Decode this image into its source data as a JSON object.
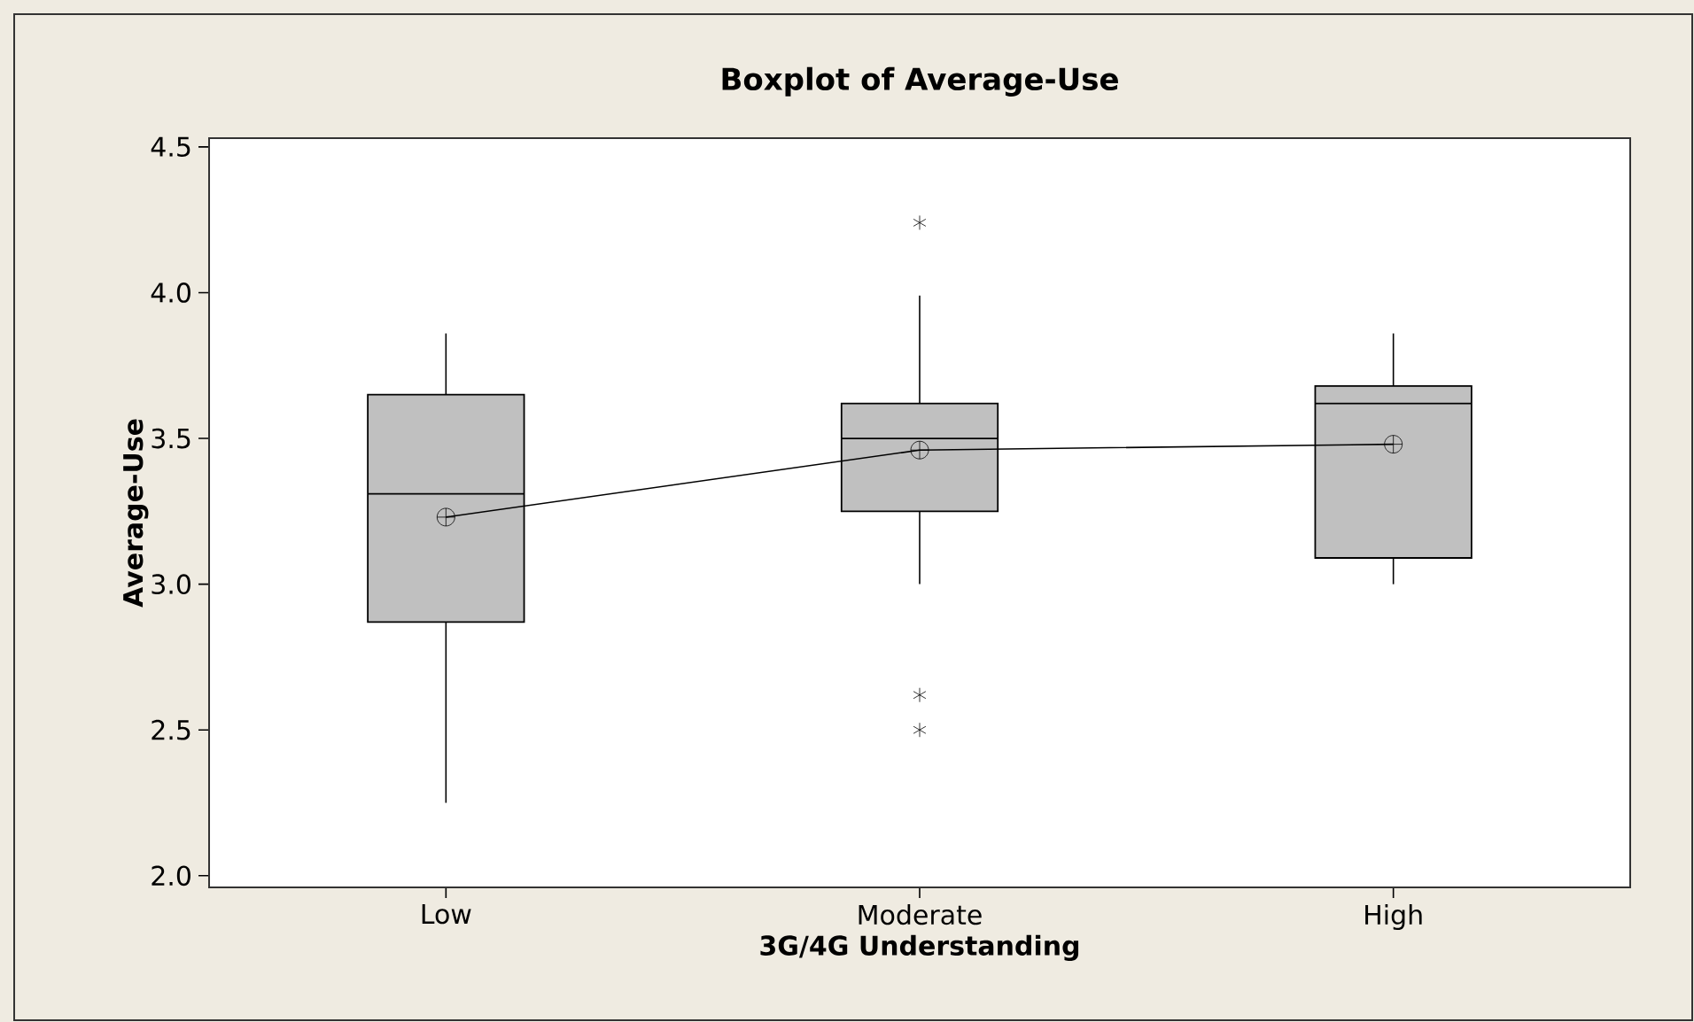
{
  "chart_data": {
    "type": "box",
    "title": "Boxplot of Average-Use",
    "xlabel": "3G/4G Understanding",
    "ylabel": "Average-Use",
    "categories": [
      "Low",
      "Moderate",
      "High"
    ],
    "series": [
      {
        "color": "#c0c0c0",
        "boxes": [
          {
            "low": 2.25,
            "q1": 2.87,
            "median": 3.31,
            "q3": 3.65,
            "high": 3.86,
            "mean": 3.23
          },
          {
            "low": 3.0,
            "q1": 3.25,
            "median": 3.5,
            "q3": 3.62,
            "high": 3.99,
            "mean": 3.46,
            "outliers": [
              4.24,
              2.62,
              2.5
            ]
          },
          {
            "low": 3.0,
            "q1": 3.09,
            "median": 3.62,
            "q3": 3.68,
            "high": 3.86,
            "mean": 3.48
          }
        ]
      },
      {
        "type": "line",
        "color": "#000000",
        "values": [
          3.23,
          3.46,
          3.48
        ]
      }
    ],
    "ylim": [
      1.96,
      4.53
    ],
    "yticks": [
      {
        "value": 2.0,
        "label": "2.0"
      },
      {
        "value": 2.5,
        "label": "2.5"
      },
      {
        "value": 3.0,
        "label": "3.0"
      },
      {
        "value": 3.5,
        "label": "3.5"
      },
      {
        "value": 4.0,
        "label": "4.0"
      },
      {
        "value": 4.5,
        "label": "4.5"
      }
    ]
  }
}
